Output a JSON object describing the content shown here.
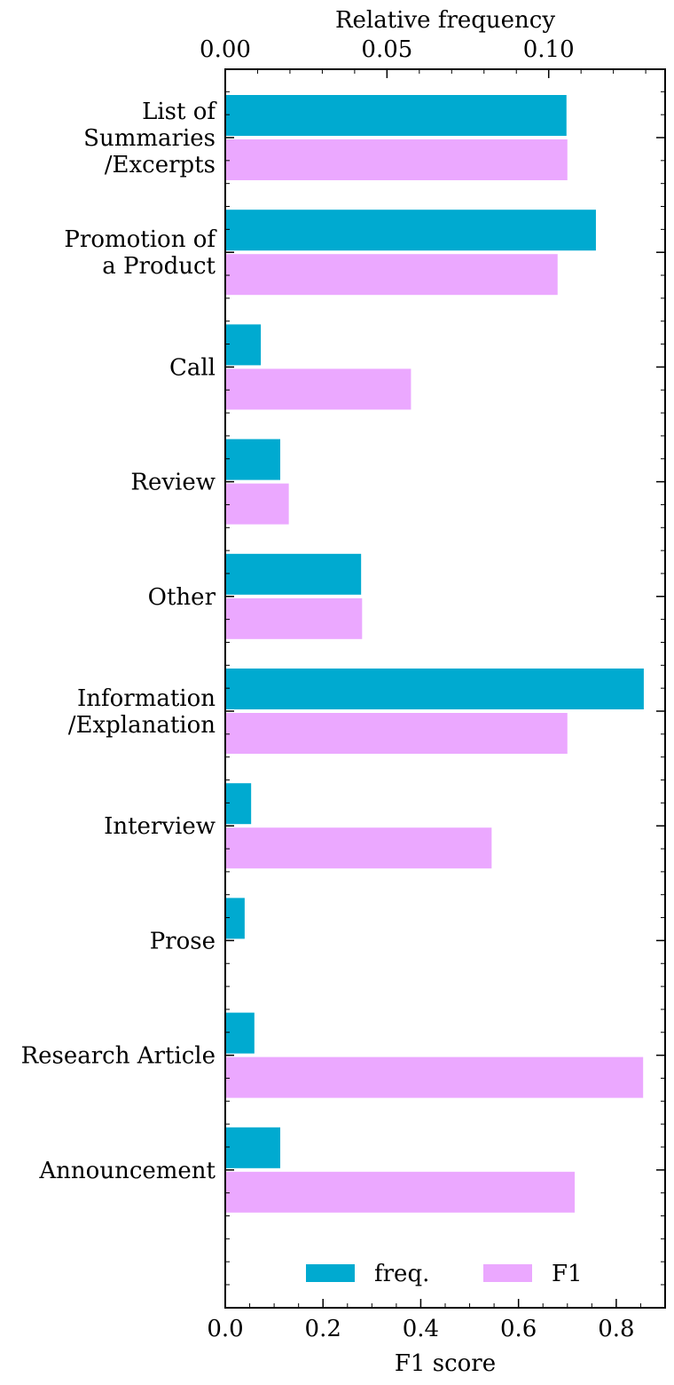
{
  "chart_data": {
    "type": "bar",
    "orientation": "horizontal",
    "categories": [
      "List of\nSummaries\n/Excerpts",
      "Promotion of\na Product",
      "Call",
      "Review",
      "Other",
      "Information\n/Explanation",
      "Interview",
      "Prose",
      "Research Article",
      "Announcement"
    ],
    "series": [
      {
        "name": "freq.",
        "axis": "top",
        "color": "#00aad0",
        "values": [
          0.1055,
          0.1146,
          0.011,
          0.017,
          0.042,
          0.1294,
          0.008,
          0.006,
          0.009,
          0.017
        ]
      },
      {
        "name": "F1",
        "axis": "bottom",
        "color": "#eba8ff",
        "values": [
          0.7,
          0.68,
          0.38,
          0.13,
          0.28,
          0.7,
          0.545,
          0.0,
          0.855,
          0.715
        ]
      }
    ],
    "xlabel_bottom": "F1 score",
    "xlabel_top": "Relative frequency",
    "xlim_bottom": [
      0,
      0.9
    ],
    "xlim_top": [
      0,
      0.136
    ],
    "xticks_bottom": [
      "0.0",
      "0.2",
      "0.4",
      "0.6",
      "0.8"
    ],
    "xticks_top": [
      "0.00",
      "0.05",
      "0.10"
    ],
    "legend_position": "lower center",
    "grid": false
  }
}
